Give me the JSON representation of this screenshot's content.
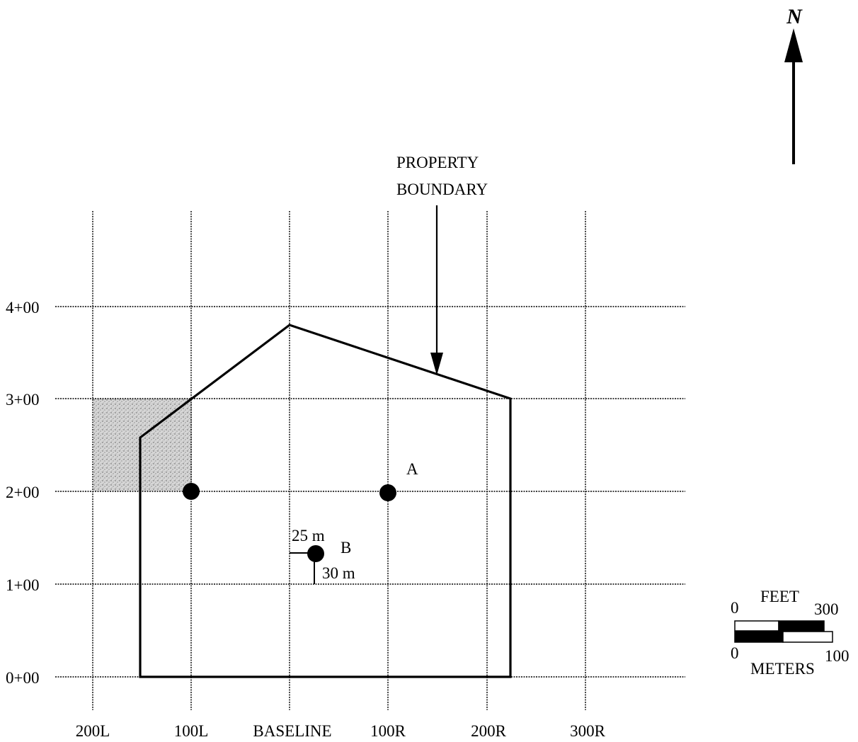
{
  "north": {
    "label": "N"
  },
  "callout": {
    "line1": "PROPERTY",
    "line2": "BOUNDARY"
  },
  "x_axis": [
    "200L",
    "100L",
    "BASELINE",
    "100R",
    "200R",
    "300R"
  ],
  "y_axis": [
    "4+00",
    "3+00",
    "2+00",
    "1+00",
    "0+00"
  ],
  "points": {
    "a_label": "A",
    "b_label": "B",
    "offset_west": "25 m",
    "offset_south": "30 m"
  },
  "scale_bar": {
    "feet_label": "FEET",
    "feet_min": "0",
    "feet_max": "300",
    "meters_label": "METERS",
    "meters_min": "0",
    "meters_max": "100"
  },
  "colors": {
    "ink": "#000000",
    "paper": "#ffffff",
    "stipple": "#9a9a9a"
  }
}
